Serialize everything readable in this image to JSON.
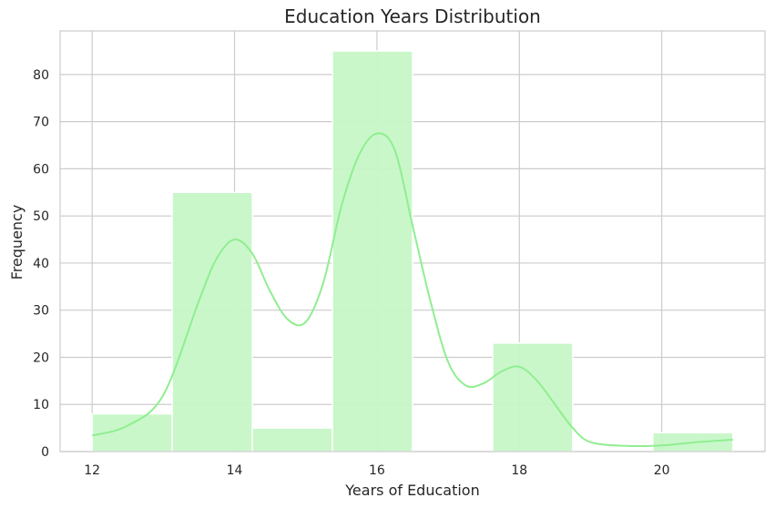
{
  "chart_data": {
    "type": "bar",
    "title": "Education Years Distribution",
    "xlabel": "Years of Education",
    "ylabel": "Frequency",
    "xlim": [
      11.55,
      21.45
    ],
    "ylim": [
      0,
      89.25
    ],
    "x_ticks": [
      12,
      14,
      16,
      18,
      20
    ],
    "y_ticks": [
      0,
      10,
      20,
      30,
      40,
      50,
      60,
      70,
      80
    ],
    "bins": [
      {
        "x0": 12.0,
        "x1": 13.125,
        "value": 8
      },
      {
        "x0": 13.125,
        "x1": 14.25,
        "value": 55
      },
      {
        "x0": 14.25,
        "x1": 15.375,
        "value": 5
      },
      {
        "x0": 15.375,
        "x1": 16.5,
        "value": 85
      },
      {
        "x0": 16.5,
        "x1": 17.625,
        "value": 0
      },
      {
        "x0": 17.625,
        "x1": 18.75,
        "value": 23
      },
      {
        "x0": 18.75,
        "x1": 19.875,
        "value": 0
      },
      {
        "x0": 19.875,
        "x1": 21.0,
        "value": 4
      }
    ],
    "kde": {
      "x": [
        12.0,
        12.5,
        13.0,
        13.5,
        13.75,
        14.0,
        14.25,
        14.5,
        14.75,
        15.0,
        15.25,
        15.5,
        15.75,
        16.0,
        16.25,
        16.5,
        16.75,
        17.0,
        17.25,
        17.5,
        17.75,
        18.0,
        18.25,
        18.5,
        18.75,
        19.0,
        19.5,
        20.0,
        20.5,
        21.0
      ],
      "y": [
        3.4,
        5.5,
        12.0,
        32.0,
        41.0,
        45.0,
        42.0,
        34.0,
        28.0,
        27.5,
        36.0,
        52.0,
        63.0,
        67.5,
        64.0,
        48.0,
        32.0,
        19.0,
        14.0,
        14.5,
        17.0,
        18.0,
        15.0,
        10.0,
        5.0,
        2.0,
        1.2,
        1.3,
        2.0,
        2.5
      ]
    },
    "colors": {
      "bar_fill": "#c6f7c7",
      "bar_edge": "#ffffff",
      "kde_line": "#90ee90"
    },
    "grid": true,
    "legend": "none"
  }
}
